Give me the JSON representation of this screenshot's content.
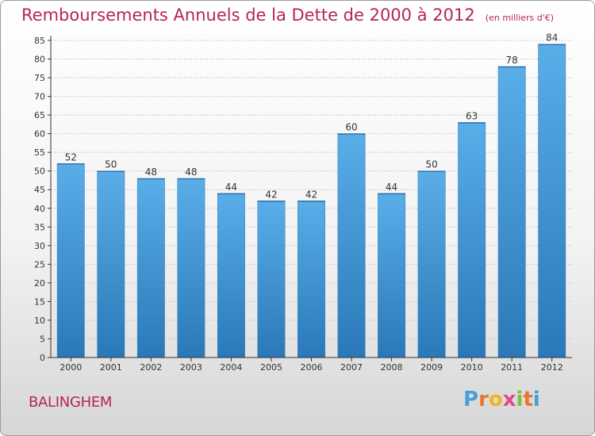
{
  "header": {
    "title": "Remboursements Annuels de la Dette de 2000 à 2012",
    "subtitle": "(en milliers d'€)"
  },
  "footer": {
    "commune": "BALINGHEM",
    "logo_text": "Proxiti",
    "logo_colors": [
      "#4a9fd8",
      "#e8772e",
      "#f0b41e",
      "#e04a8a",
      "#7cc242",
      "#e8772e",
      "#4a9fd8"
    ]
  },
  "colors": {
    "title": "#b5245e",
    "bar_top": "#5aaee8",
    "bar_bottom": "#2a78b8",
    "grid": "#c8c8c8",
    "axis": "#333333"
  },
  "chart_data": {
    "type": "bar",
    "categories": [
      "2000",
      "2001",
      "2002",
      "2003",
      "2004",
      "2005",
      "2006",
      "2007",
      "2008",
      "2009",
      "2010",
      "2011",
      "2012"
    ],
    "values": [
      52,
      50,
      48,
      48,
      44,
      42,
      42,
      60,
      44,
      50,
      63,
      78,
      84
    ],
    "title": "Remboursements Annuels de la Dette de 2000 à 2012",
    "subtitle": "(en milliers d'€)",
    "xlabel": "",
    "ylabel": "",
    "ylim": [
      0,
      85
    ],
    "yticks": [
      0,
      5,
      10,
      15,
      20,
      25,
      30,
      35,
      40,
      45,
      50,
      55,
      60,
      65,
      70,
      75,
      80,
      85
    ],
    "grid": true,
    "legend": "none"
  }
}
